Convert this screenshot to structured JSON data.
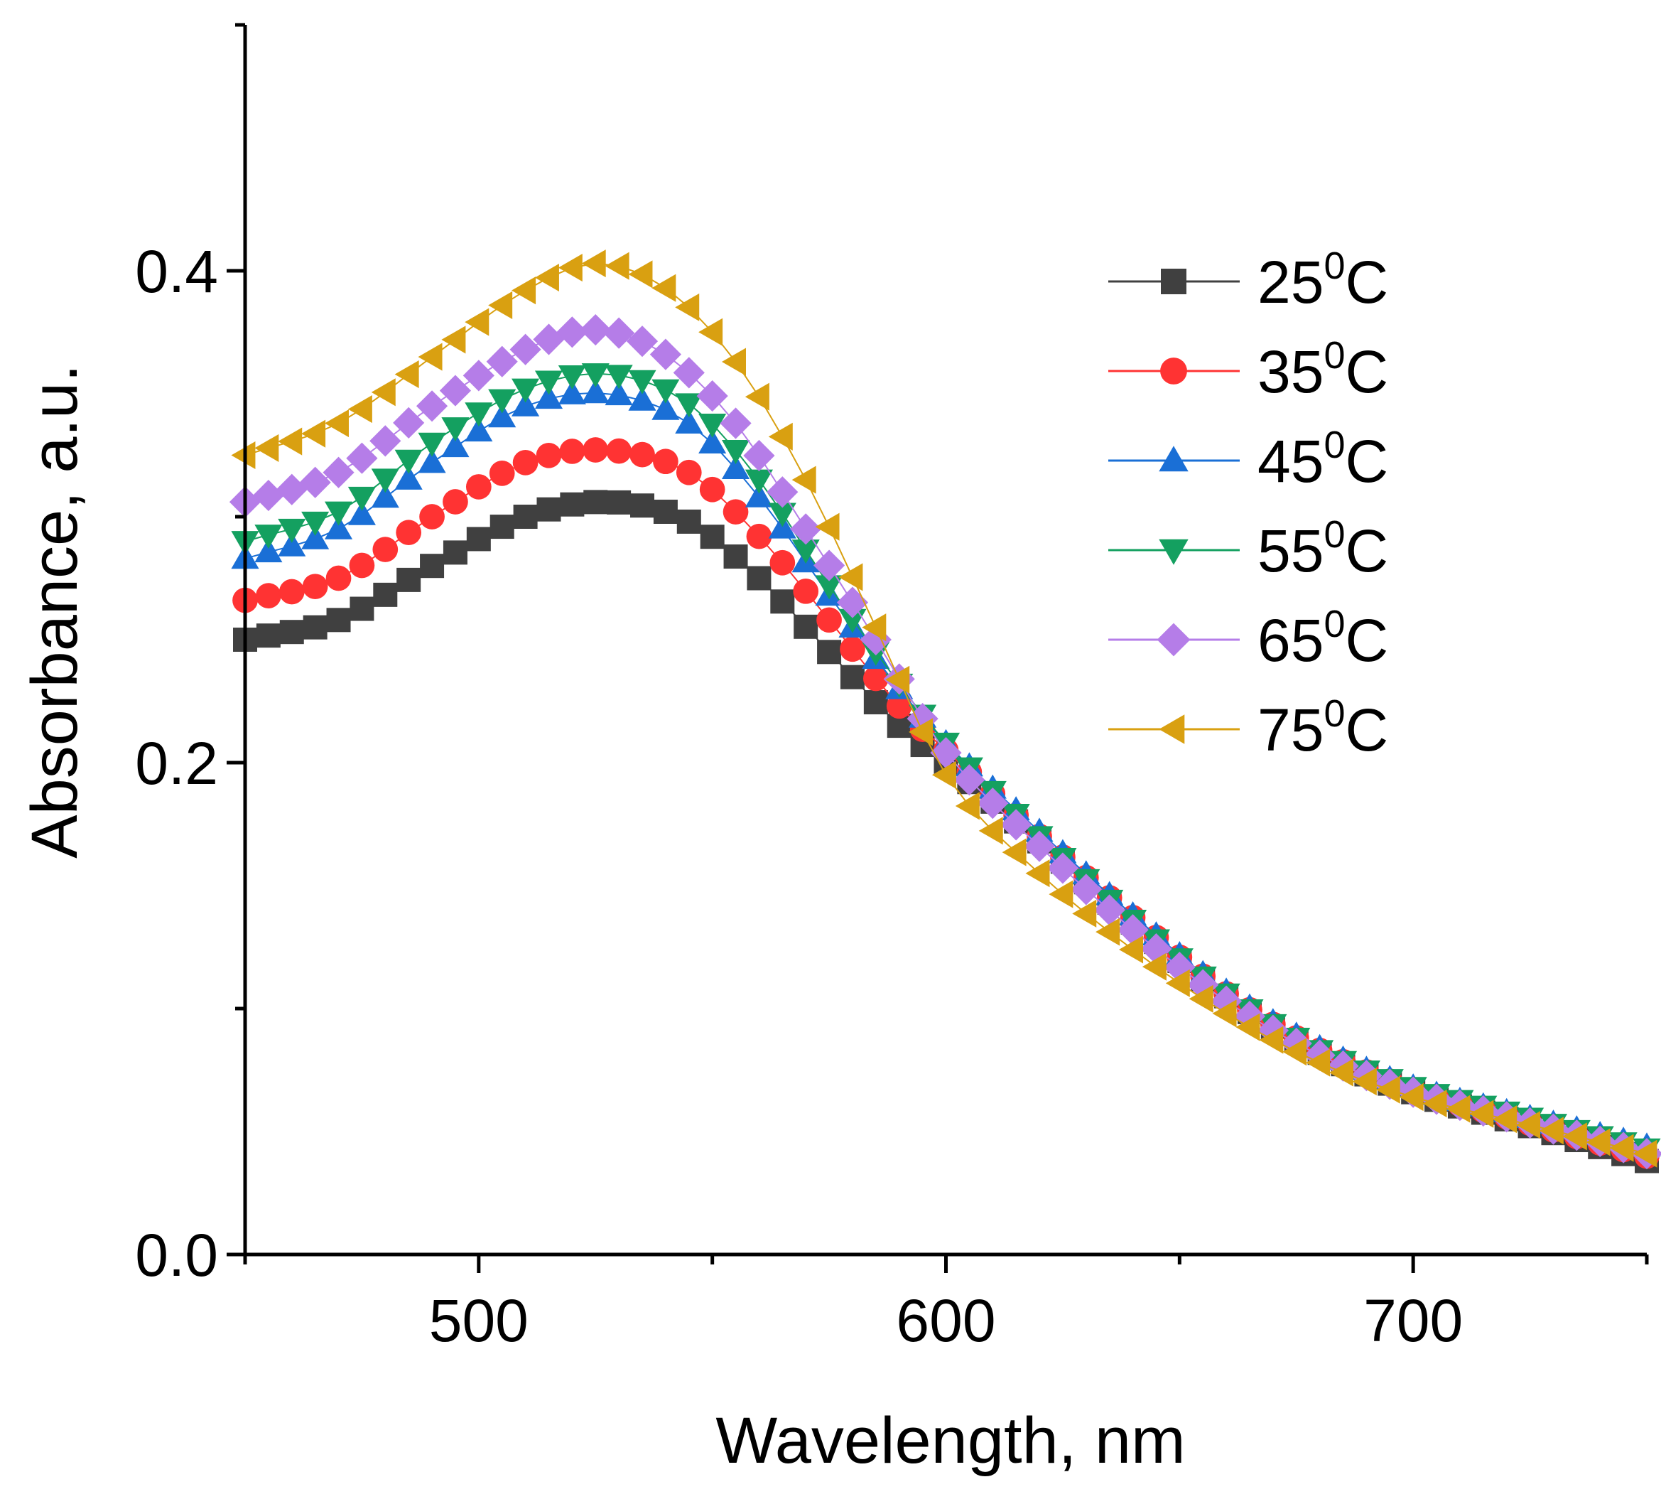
{
  "chart_data": {
    "type": "scatter",
    "title": "",
    "xlabel": "Wavelength, nm",
    "ylabel": "Absorbance, a.u.",
    "xlim": [
      450,
      750
    ],
    "ylim": [
      0,
      0.5
    ],
    "xticks": [
      500,
      600,
      700
    ],
    "xtick_labels": [
      "500",
      "600",
      "700"
    ],
    "yticks": [
      0.0,
      0.2,
      0.4
    ],
    "ytick_labels": [
      "0.0",
      "0.2",
      "0.4"
    ],
    "grid": false,
    "legend_position": "top-right",
    "marker_style": "markers connected by thin line",
    "x_range": [
      450,
      750
    ],
    "x_step": 5,
    "series": [
      {
        "name": "25",
        "superscript": "0",
        "suffix": "C",
        "color": "#404040",
        "marker": "square",
        "control_points": [
          [
            450,
            0.25
          ],
          [
            470,
            0.258
          ],
          [
            490,
            0.28
          ],
          [
            510,
            0.3
          ],
          [
            528,
            0.306
          ],
          [
            545,
            0.298
          ],
          [
            560,
            0.275
          ],
          [
            575,
            0.245
          ],
          [
            590,
            0.215
          ],
          [
            600,
            0.2
          ],
          [
            620,
            0.168
          ],
          [
            640,
            0.135
          ],
          [
            660,
            0.105
          ],
          [
            680,
            0.082
          ],
          [
            700,
            0.066
          ],
          [
            720,
            0.055
          ],
          [
            750,
            0.038
          ]
        ]
      },
      {
        "name": "35",
        "superscript": "0",
        "suffix": "C",
        "color": "#ff3333",
        "marker": "circle",
        "control_points": [
          [
            450,
            0.266
          ],
          [
            470,
            0.275
          ],
          [
            490,
            0.3
          ],
          [
            510,
            0.322
          ],
          [
            528,
            0.327
          ],
          [
            545,
            0.318
          ],
          [
            560,
            0.292
          ],
          [
            575,
            0.258
          ],
          [
            590,
            0.223
          ],
          [
            600,
            0.205
          ],
          [
            620,
            0.17
          ],
          [
            640,
            0.137
          ],
          [
            660,
            0.106
          ],
          [
            680,
            0.083
          ],
          [
            700,
            0.067
          ],
          [
            720,
            0.056
          ],
          [
            750,
            0.04
          ]
        ]
      },
      {
        "name": "45",
        "superscript": "0",
        "suffix": "C",
        "color": "#1a6fd6",
        "marker": "triangle-up",
        "control_points": [
          [
            450,
            0.283
          ],
          [
            470,
            0.295
          ],
          [
            490,
            0.322
          ],
          [
            510,
            0.345
          ],
          [
            528,
            0.35
          ],
          [
            545,
            0.338
          ],
          [
            560,
            0.308
          ],
          [
            575,
            0.268
          ],
          [
            590,
            0.23
          ],
          [
            600,
            0.208
          ],
          [
            620,
            0.172
          ],
          [
            640,
            0.138
          ],
          [
            660,
            0.107
          ],
          [
            680,
            0.084
          ],
          [
            700,
            0.068
          ],
          [
            720,
            0.058
          ],
          [
            750,
            0.044
          ]
        ]
      },
      {
        "name": "55",
        "superscript": "0",
        "suffix": "C",
        "color": "#14a060",
        "marker": "triangle-down",
        "control_points": [
          [
            450,
            0.29
          ],
          [
            470,
            0.302
          ],
          [
            490,
            0.33
          ],
          [
            510,
            0.352
          ],
          [
            528,
            0.358
          ],
          [
            545,
            0.346
          ],
          [
            560,
            0.315
          ],
          [
            575,
            0.272
          ],
          [
            590,
            0.232
          ],
          [
            600,
            0.208
          ],
          [
            620,
            0.17
          ],
          [
            640,
            0.136
          ],
          [
            660,
            0.106
          ],
          [
            680,
            0.083
          ],
          [
            700,
            0.068
          ],
          [
            720,
            0.058
          ],
          [
            750,
            0.043
          ]
        ]
      },
      {
        "name": "65",
        "superscript": "0",
        "suffix": "C",
        "color": "#b57de8",
        "marker": "diamond",
        "control_points": [
          [
            450,
            0.306
          ],
          [
            470,
            0.318
          ],
          [
            490,
            0.345
          ],
          [
            510,
            0.368
          ],
          [
            525,
            0.376
          ],
          [
            540,
            0.366
          ],
          [
            555,
            0.338
          ],
          [
            570,
            0.295
          ],
          [
            585,
            0.25
          ],
          [
            600,
            0.204
          ],
          [
            620,
            0.166
          ],
          [
            640,
            0.132
          ],
          [
            660,
            0.103
          ],
          [
            680,
            0.081
          ],
          [
            700,
            0.066
          ],
          [
            720,
            0.056
          ],
          [
            750,
            0.041
          ]
        ]
      },
      {
        "name": "75",
        "superscript": "0",
        "suffix": "C",
        "color": "#d9a011",
        "marker": "triangle-left",
        "control_points": [
          [
            450,
            0.325
          ],
          [
            470,
            0.338
          ],
          [
            490,
            0.365
          ],
          [
            510,
            0.392
          ],
          [
            525,
            0.403
          ],
          [
            540,
            0.393
          ],
          [
            555,
            0.363
          ],
          [
            570,
            0.315
          ],
          [
            585,
            0.255
          ],
          [
            600,
            0.195
          ],
          [
            620,
            0.155
          ],
          [
            640,
            0.124
          ],
          [
            660,
            0.098
          ],
          [
            680,
            0.078
          ],
          [
            700,
            0.064
          ],
          [
            720,
            0.055
          ],
          [
            750,
            0.041
          ]
        ]
      }
    ]
  }
}
